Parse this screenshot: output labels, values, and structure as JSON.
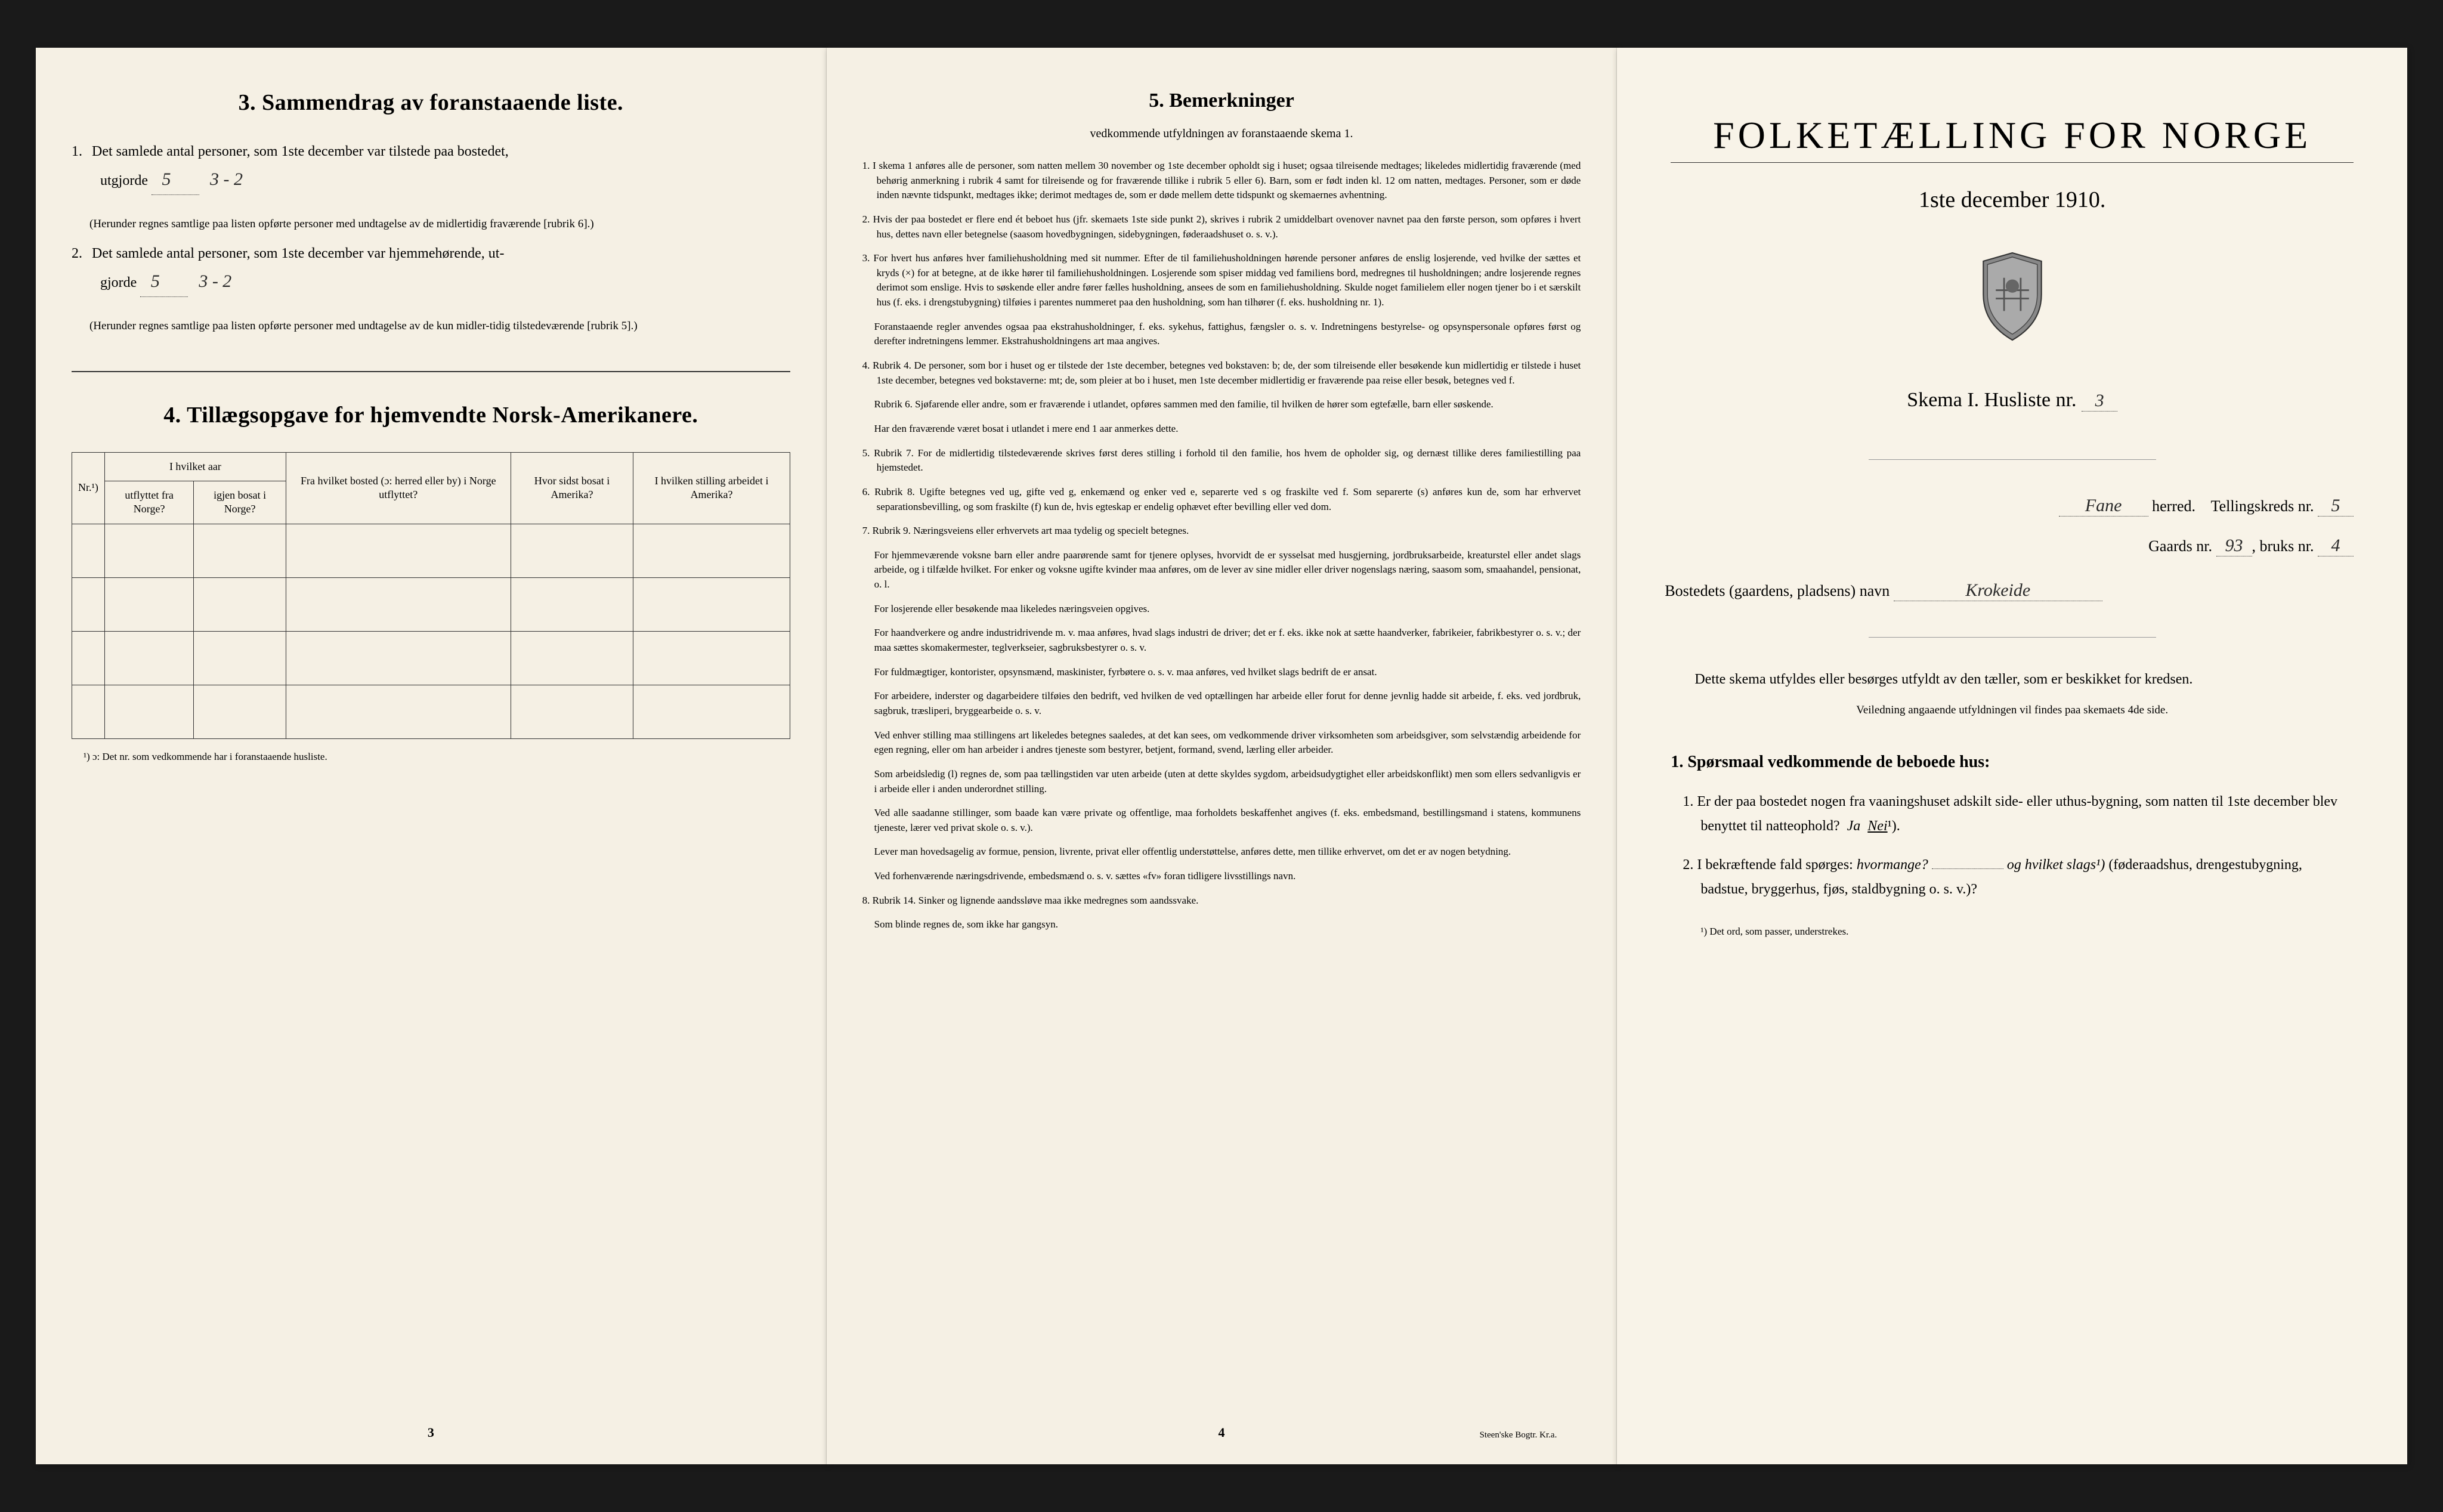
{
  "page_left": {
    "section3": {
      "title": "3.   Sammendrag av foranstaaende liste.",
      "item1_prefix": "1.",
      "item1_text_a": "Det samlede antal personer, som 1ste december var tilstede paa bostedet,",
      "item1_text_b": "utgjorde",
      "item1_value": "5",
      "item1_extra_notation": "3 - 2",
      "item1_note": "(Herunder regnes samtlige paa listen opførte personer med undtagelse av de midlertidig fraværende [rubrik 6].)",
      "item2_prefix": "2.",
      "item2_text_a": "Det samlede antal personer, som 1ste december var hjemmehørende, ut-",
      "item2_text_b": "gjorde",
      "item2_value": "5",
      "item2_extra_notation": "3 - 2",
      "item2_note": "(Herunder regnes samtlige paa listen opførte personer med undtagelse av de kun midler-tidig tilstedeværende [rubrik 5].)"
    },
    "section4": {
      "title": "4.   Tillægsopgave for hjemvendte Norsk-Amerikanere.",
      "table": {
        "col1_header": "Nr.¹)",
        "col2_group": "I hvilket aar",
        "col2a": "utflyttet fra Norge?",
        "col2b": "igjen bosat i Norge?",
        "col3": "Fra hvilket bosted (ɔ: herred eller by) i Norge utflyttet?",
        "col4": "Hvor sidst bosat i Amerika?",
        "col5": "I hvilken stilling arbeidet i Amerika?",
        "rows": 4
      },
      "footnote": "¹) ɔ: Det nr. som vedkommende har i foranstaaende husliste."
    },
    "page_number": "3"
  },
  "page_middle": {
    "title": "5.   Bemerkninger",
    "subtitle": "vedkommende utfyldningen av foranstaaende skema 1.",
    "items": [
      {
        "num": "1.",
        "text": "I skema 1 anføres alle de personer, som natten mellem 30 november og 1ste december opholdt sig i huset; ogsaa tilreisende medtages; likeledes midlertidig fraværende (med behørig anmerkning i rubrik 4 samt for tilreisende og for fraværende tillike i rubrik 5 eller 6). Barn, som er født inden kl. 12 om natten, medtages. Personer, som er døde inden nævnte tidspunkt, medtages ikke; derimot medtages de, som er døde mellem dette tidspunkt og skemaernes avhentning."
      },
      {
        "num": "2.",
        "text": "Hvis der paa bostedet er flere end ét beboet hus (jfr. skemaets 1ste side punkt 2), skrives i rubrik 2 umiddelbart ovenover navnet paa den første person, som opføres i hvert hus, dettes navn eller betegnelse (saasom hovedbygningen, sidebygningen, føderaadshuset o. s. v.)."
      },
      {
        "num": "3.",
        "text": "For hvert hus anføres hver familiehusholdning med sit nummer. Efter de til familiehusholdningen hørende personer anføres de enslig losjerende, ved hvilke der sættes et kryds (×) for at betegne, at de ikke hører til familiehusholdningen. Losjerende som spiser middag ved familiens bord, medregnes til husholdningen; andre losjerende regnes derimot som enslige. Hvis to søskende eller andre fører fælles husholdning, ansees de som en familiehusholdning. Skulde noget familielem eller nogen tjener bo i et særskilt hus (f. eks. i drengstubygning) tilføies i parentes nummeret paa den husholdning, som han tilhører (f. eks. husholdning nr. 1).",
        "text2": "Foranstaaende regler anvendes ogsaa paa ekstrahusholdninger, f. eks. sykehus, fattighus, fængsler o. s. v. Indretningens bestyrelse- og opsynspersonale opføres først og derefter indretningens lemmer. Ekstrahusholdningens art maa angives."
      },
      {
        "num": "4.",
        "text": "Rubrik 4. De personer, som bor i huset og er tilstede der 1ste december, betegnes ved bokstaven: b; de, der som tilreisende eller besøkende kun midlertidig er tilstede i huset 1ste december, betegnes ved bokstaverne: mt; de, som pleier at bo i huset, men 1ste december midlertidig er fraværende paa reise eller besøk, betegnes ved f.",
        "text2": "Rubrik 6. Sjøfarende eller andre, som er fraværende i utlandet, opføres sammen med den familie, til hvilken de hører som egtefælle, barn eller søskende.",
        "text3": "Har den fraværende været bosat i utlandet i mere end 1 aar anmerkes dette."
      },
      {
        "num": "5.",
        "text": "Rubrik 7. For de midlertidig tilstedeværende skrives først deres stilling i forhold til den familie, hos hvem de opholder sig, og dernæst tillike deres familiestilling paa hjemstedet."
      },
      {
        "num": "6.",
        "text": "Rubrik 8. Ugifte betegnes ved ug, gifte ved g, enkemænd og enker ved e, separerte ved s og fraskilte ved f. Som separerte (s) anføres kun de, som har erhvervet separationsbevilling, og som fraskilte (f) kun de, hvis egteskap er endelig ophævet efter bevilling eller ved dom."
      },
      {
        "num": "7.",
        "text": "Rubrik 9. Næringsveiens eller erhvervets art maa tydelig og specielt betegnes.",
        "text2": "For hjemmeværende voksne barn eller andre paarørende samt for tjenere oplyses, hvorvidt de er sysselsat med husgjerning, jordbruksarbeide, kreaturstel eller andet slags arbeide, og i tilfælde hvilket. For enker og voksne ugifte kvinder maa anføres, om de lever av sine midler eller driver nogenslags næring, saasom som, smaahandel, pensionat, o. l.",
        "text3": "For losjerende eller besøkende maa likeledes næringsveien opgives.",
        "text4": "For haandverkere og andre industridrivende m. v. maa anføres, hvad slags industri de driver; det er f. eks. ikke nok at sætte haandverker, fabrikeier, fabrikbestyrer o. s. v.; der maa sættes skomakermester, teglverkseier, sagbruksbestyrer o. s. v.",
        "text5": "For fuldmægtiger, kontorister, opsynsmænd, maskinister, fyrbøtere o. s. v. maa anføres, ved hvilket slags bedrift de er ansat.",
        "text6": "For arbeidere, inderster og dagarbeidere tilføies den bedrift, ved hvilken de ved optællingen har arbeide eller forut for denne jevnlig hadde sit arbeide, f. eks. ved jordbruk, sagbruk, træsliperi, bryggearbeide o. s. v.",
        "text7": "Ved enhver stilling maa stillingens art likeledes betegnes saaledes, at det kan sees, om vedkommende driver virksomheten som arbeidsgiver, som selvstændig arbeidende for egen regning, eller om han arbeider i andres tjeneste som bestyrer, betjent, formand, svend, lærling eller arbeider.",
        "text8": "Som arbeidsledig (l) regnes de, som paa tællingstiden var uten arbeide (uten at dette skyldes sygdom, arbeidsudygtighet eller arbeidskonflikt) men som ellers sedvanligvis er i arbeide eller i anden underordnet stilling.",
        "text9": "Ved alle saadanne stillinger, som baade kan være private og offentlige, maa forholdets beskaffenhet angives (f. eks. embedsmand, bestillingsmand i statens, kommunens tjeneste, lærer ved privat skole o. s. v.).",
        "text10": "Lever man hovedsagelig av formue, pension, livrente, privat eller offentlig understøttelse, anføres dette, men tillike erhvervet, om det er av nogen betydning.",
        "text11": "Ved forhenværende næringsdrivende, embedsmænd o. s. v. sættes «fv» foran tidligere livsstillings navn."
      },
      {
        "num": "8.",
        "text": "Rubrik 14. Sinker og lignende aandssløve maa ikke medregnes som aandssvake.",
        "text2": "Som blinde regnes de, som ikke har gangsyn."
      }
    ],
    "page_number": "4",
    "printer": "Steen'ske Bogtr.  Kr.a."
  },
  "page_right": {
    "main_title": "FOLKETÆLLING FOR NORGE",
    "date": "1ste december 1910.",
    "skema": {
      "label_a": "Skema I.  Husliste nr.",
      "value": "3"
    },
    "herred": {
      "value": "Fane",
      "label": "herred.",
      "tellingskreds_label": "Tellingskreds nr.",
      "tellingskreds_value": "5"
    },
    "gaard": {
      "gaards_label": "Gaards nr.",
      "gaards_value": "93",
      "bruks_label": "bruks nr.",
      "bruks_value": "4"
    },
    "bosted": {
      "label": "Bostedets (gaardens, pladsens) navn",
      "value": "Krokeide"
    },
    "intro": "Dette skema utfyldes eller besørges utfyldt av den tæller, som er beskikket for kredsen.",
    "veiledning": "Veiledning angaaende utfyldningen vil findes paa skemaets 4de side.",
    "sporsmaal": {
      "heading": "1. Spørsmaal vedkommende de beboede hus:",
      "item1_num": "1.",
      "item1_text": "Er der paa bostedet nogen fra vaaningshuset adskilt side- eller uthus-bygning, som natten til 1ste december blev benyttet til natteophold?",
      "item1_ja": "Ja",
      "item1_nei": "Nei",
      "item1_sup": "¹).",
      "item2_num": "2.",
      "item2_text_a": "I bekræftende fald spørges:",
      "item2_hvormange": "hvormange?",
      "item2_text_b": "og hvilket slags¹)",
      "item2_text_c": "(føderaadshus, drengestubygning, badstue, bryggerhus, fjøs, staldbygning o. s. v.)?"
    },
    "footnote": "¹) Det ord, som passer, understrekes."
  },
  "colors": {
    "background": "#1a1a1a",
    "paper": "#f5f0e4",
    "paper_right": "#f8f3e8",
    "text": "#1a1a1a"
  }
}
